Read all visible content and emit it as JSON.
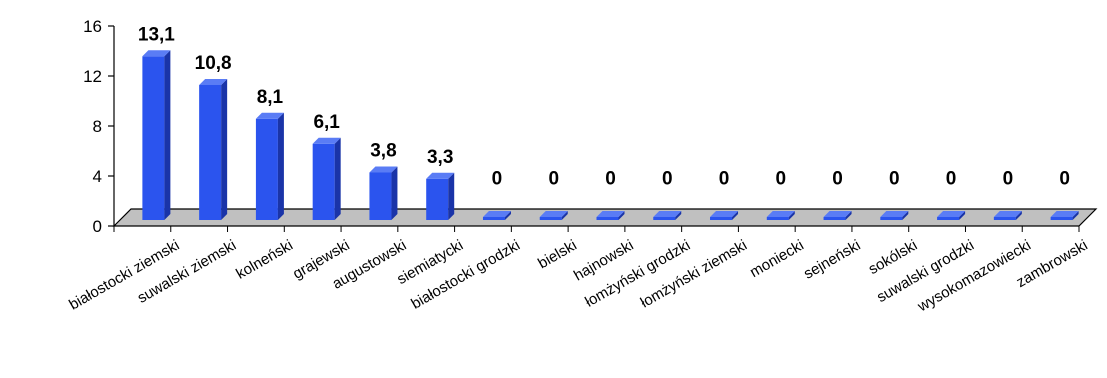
{
  "chart_data": {
    "type": "bar",
    "title": "",
    "xlabel": "",
    "ylabel": "",
    "ylim": [
      0,
      16
    ],
    "yticks": [
      0,
      4,
      8,
      12,
      16
    ],
    "grid": false,
    "legend": "none",
    "three_d": true,
    "categories": [
      "białostocki ziemski",
      "suwalski ziemski",
      "kolneński",
      "grajewski",
      "augustowski",
      "siemiatycki",
      "białostocki grodzki",
      "bielski",
      "hajnowski",
      "łomżyński grodzki",
      "łomżyński ziemski",
      "moniecki",
      "sejneński",
      "sokólski",
      "suwalski grodzki",
      "wysokomazowiecki",
      "zambrowski"
    ],
    "values": [
      13.1,
      10.8,
      8.1,
      6.1,
      3.8,
      3.3,
      0,
      0,
      0,
      0,
      0,
      0,
      0,
      0,
      0,
      0,
      0
    ],
    "data_labels": [
      "13,1",
      "10,8",
      "8,1",
      "6,1",
      "3,8",
      "3,3",
      "0",
      "0",
      "0",
      "0",
      "0",
      "0",
      "0",
      "0",
      "0",
      "0",
      "0"
    ],
    "colors": {
      "bar_front": "#2b54ee",
      "bar_side": "#1a34a8",
      "bar_top": "#5a7cf5",
      "floor": "#c0c0c0",
      "axis": "#000000"
    }
  }
}
